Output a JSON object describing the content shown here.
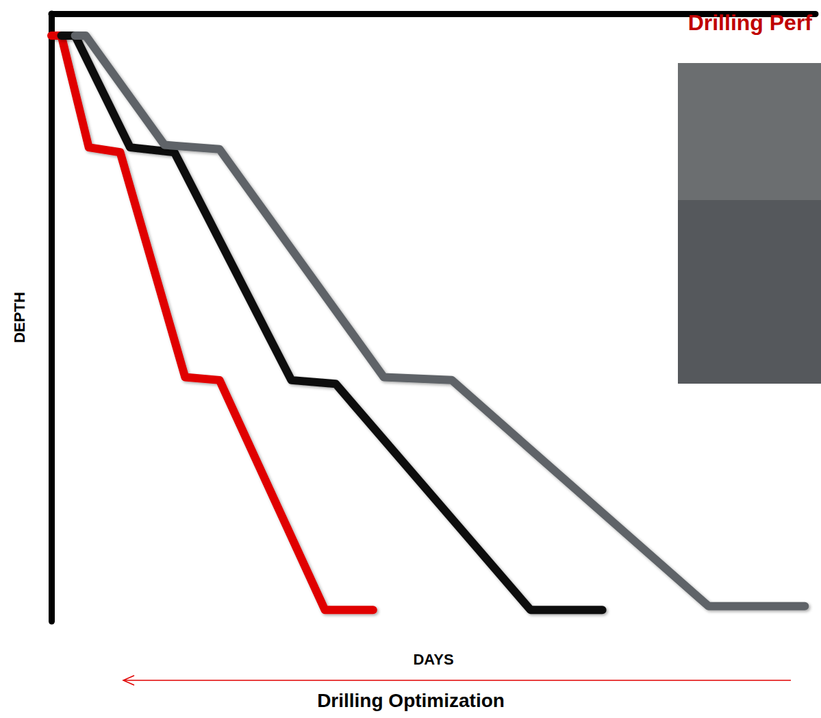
{
  "chart_data": {
    "type": "line",
    "title": "Drilling Perf",
    "x_label": "DAYS",
    "y_label": "DEPTH",
    "annotation": "Drilling Optimization",
    "xlim": [
      0,
      100
    ],
    "ylim": [
      0,
      100
    ],
    "tick_labels": false,
    "grid": false,
    "series": [
      {
        "color": "#e00000",
        "x": [
          0,
          1.3,
          4.9,
          9,
          17.5,
          22,
          35.8,
          42.1
        ],
        "values": [
          3.6,
          3.6,
          22,
          22.8,
          59.8,
          60.3,
          98.1,
          98.1
        ]
      },
      {
        "color": "#111111",
        "x": [
          1.3,
          3.1,
          10.3,
          16.1,
          31.4,
          37.2,
          62.7,
          72.1
        ],
        "values": [
          3.6,
          3.6,
          22,
          22.8,
          60.3,
          60.9,
          98.1,
          98.1
        ]
      },
      {
        "color": "#5f6468",
        "x": [
          3.1,
          4.5,
          14.8,
          22,
          43.5,
          52.4,
          86,
          98.6
        ],
        "values": [
          3.6,
          3.6,
          21.6,
          22.3,
          59.8,
          60.3,
          97.5,
          97.5
        ]
      }
    ]
  }
}
